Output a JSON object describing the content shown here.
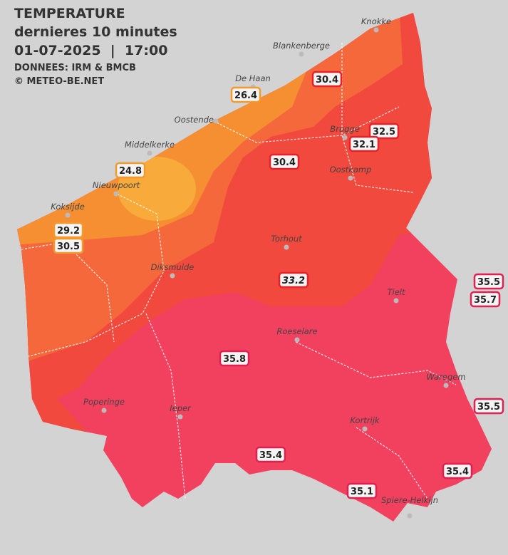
{
  "header": {
    "title": "TEMPERATURE",
    "subtitle": "dernieres 10 minutes",
    "datetime": "01-07-2025  |  17:00",
    "source": "DONNEES: IRM & BMCB",
    "credit": "© METEO-BE.NET"
  },
  "cities": [
    "Knokke",
    "Blankenberge",
    "De Haan",
    "Oostende",
    "Brugge",
    "Middelkerke",
    "Oostkamp",
    "Nieuwpoort",
    "Koksijde",
    "Torhout",
    "Diksmuide",
    "Tielt",
    "Roeselare",
    "Waregem",
    "Poperinge",
    "Ieper",
    "Kortrijk",
    "Spiere-Helkijn"
  ],
  "stations": [
    30.4,
    26.4,
    32.5,
    32.1,
    30.4,
    24.8,
    29.2,
    30.5,
    33.2,
    35.5,
    35.7,
    35.8,
    35.5,
    35.4,
    35.4,
    35.1
  ]
}
